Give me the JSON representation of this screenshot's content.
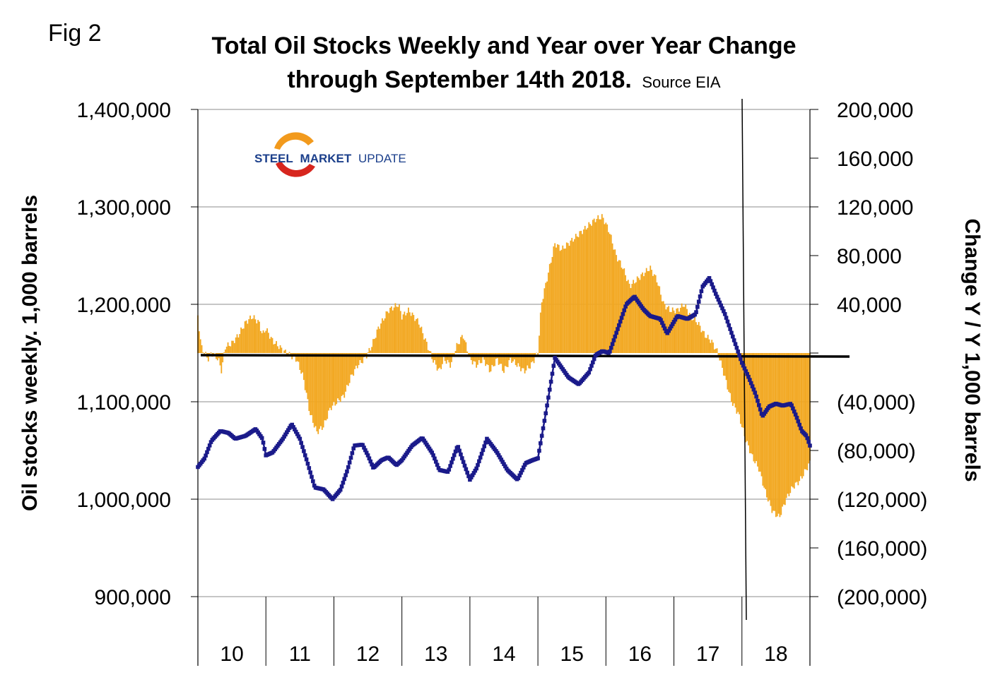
{
  "figure": {
    "label": "Fig 2",
    "title_line1": "Total Oil Stocks Weekly and Year over Year Change",
    "title_line2": "through September 14th 2018.",
    "source": "Source EIA"
  },
  "logo": {
    "word1": "STEEL",
    "word2": "MARKET",
    "word3": "UPDATE",
    "colors": {
      "dark": "#1b3f8b",
      "orange": "#f29a1d",
      "red": "#d7261e"
    }
  },
  "chart_data": {
    "type": "line+bar",
    "x_categories": [
      "10",
      "11",
      "12",
      "13",
      "14",
      "15",
      "16",
      "17",
      "18"
    ],
    "x_range": [
      2010.0,
      2019.0
    ],
    "y_left": {
      "label": "Oil stocks weekly. 1,000 barrels",
      "range": [
        900000,
        1400000
      ],
      "ticks": [
        900000,
        1000000,
        1100000,
        1200000,
        1300000,
        1400000
      ],
      "tick_labels": [
        "900,000",
        "1,000,000",
        "1,100,000",
        "1,200,000",
        "1,300,000",
        "1,400,000"
      ]
    },
    "y_right": {
      "label": "Change Y / Y 1,000 barrels",
      "range": [
        -200000,
        200000
      ],
      "ticks": [
        -200000,
        -160000,
        -120000,
        -80000,
        -40000,
        0,
        40000,
        80000,
        120000,
        160000,
        200000
      ],
      "tick_labels": [
        "(200,000)",
        "(160,000)",
        "(120,000)",
        "(80,000)",
        "(40,000)",
        "",
        "40,000",
        "80,000",
        "120,000",
        "160,000",
        "200,000"
      ]
    },
    "series": [
      {
        "name": "Total oil stocks weekly",
        "axis": "left",
        "style": "line-markers",
        "color": "#1a1a8a",
        "points": [
          [
            2010.0,
            1033000
          ],
          [
            2010.1,
            1042000
          ],
          [
            2010.2,
            1060000
          ],
          [
            2010.33,
            1070000
          ],
          [
            2010.45,
            1068000
          ],
          [
            2010.55,
            1062000
          ],
          [
            2010.7,
            1065000
          ],
          [
            2010.85,
            1072000
          ],
          [
            2010.95,
            1062000
          ],
          [
            2011.0,
            1045000
          ],
          [
            2011.1,
            1048000
          ],
          [
            2011.25,
            1062000
          ],
          [
            2011.38,
            1077000
          ],
          [
            2011.5,
            1062000
          ],
          [
            2011.6,
            1040000
          ],
          [
            2011.72,
            1012000
          ],
          [
            2011.85,
            1010000
          ],
          [
            2011.98,
            1000000
          ],
          [
            2012.1,
            1010000
          ],
          [
            2012.2,
            1030000
          ],
          [
            2012.3,
            1055000
          ],
          [
            2012.42,
            1056000
          ],
          [
            2012.5,
            1045000
          ],
          [
            2012.58,
            1032000
          ],
          [
            2012.7,
            1040000
          ],
          [
            2012.8,
            1043000
          ],
          [
            2012.92,
            1035000
          ],
          [
            2013.0,
            1040000
          ],
          [
            2013.15,
            1055000
          ],
          [
            2013.3,
            1063000
          ],
          [
            2013.45,
            1047000
          ],
          [
            2013.55,
            1030000
          ],
          [
            2013.68,
            1028000
          ],
          [
            2013.82,
            1055000
          ],
          [
            2013.92,
            1035000
          ],
          [
            2014.0,
            1020000
          ],
          [
            2014.1,
            1032000
          ],
          [
            2014.25,
            1062000
          ],
          [
            2014.4,
            1048000
          ],
          [
            2014.55,
            1030000
          ],
          [
            2014.7,
            1020000
          ],
          [
            2014.82,
            1037000
          ],
          [
            2014.92,
            1040000
          ],
          [
            2015.0,
            1042000
          ],
          [
            2015.12,
            1090000
          ],
          [
            2015.25,
            1145000
          ],
          [
            2015.35,
            1135000
          ],
          [
            2015.45,
            1125000
          ],
          [
            2015.6,
            1118000
          ],
          [
            2015.75,
            1130000
          ],
          [
            2015.85,
            1148000
          ],
          [
            2015.95,
            1152000
          ],
          [
            2016.05,
            1150000
          ],
          [
            2016.15,
            1170000
          ],
          [
            2016.3,
            1200000
          ],
          [
            2016.42,
            1208000
          ],
          [
            2016.55,
            1195000
          ],
          [
            2016.65,
            1188000
          ],
          [
            2016.8,
            1185000
          ],
          [
            2016.9,
            1170000
          ],
          [
            2017.05,
            1188000
          ],
          [
            2017.2,
            1185000
          ],
          [
            2017.32,
            1190000
          ],
          [
            2017.42,
            1218000
          ],
          [
            2017.52,
            1227000
          ],
          [
            2017.62,
            1210000
          ],
          [
            2017.75,
            1190000
          ],
          [
            2017.85,
            1170000
          ],
          [
            2017.95,
            1150000
          ],
          [
            2018.0,
            1140000
          ],
          [
            2018.1,
            1125000
          ],
          [
            2018.2,
            1108000
          ],
          [
            2018.3,
            1085000
          ],
          [
            2018.4,
            1095000
          ],
          [
            2018.5,
            1098000
          ],
          [
            2018.6,
            1096000
          ],
          [
            2018.72,
            1098000
          ],
          [
            2018.8,
            1085000
          ],
          [
            2018.88,
            1070000
          ],
          [
            2018.95,
            1065000
          ],
          [
            2019.0,
            1055000
          ]
        ]
      },
      {
        "name": "Change Y / Y",
        "axis": "right",
        "style": "bars",
        "color": "#f2a71f",
        "points": [
          [
            2010.0,
            30000
          ],
          [
            2010.05,
            5000
          ],
          [
            2010.15,
            -5000
          ],
          [
            2010.2,
            0
          ],
          [
            2010.3,
            -5000
          ],
          [
            2010.35,
            -15000
          ],
          [
            2010.4,
            5000
          ],
          [
            2010.5,
            8000
          ],
          [
            2010.6,
            15000
          ],
          [
            2010.7,
            25000
          ],
          [
            2010.8,
            30000
          ],
          [
            2010.9,
            25000
          ],
          [
            2010.95,
            15000
          ],
          [
            2011.0,
            20000
          ],
          [
            2011.1,
            10000
          ],
          [
            2011.2,
            5000
          ],
          [
            2011.3,
            0
          ],
          [
            2011.45,
            -5000
          ],
          [
            2011.55,
            -20000
          ],
          [
            2011.65,
            -50000
          ],
          [
            2011.75,
            -65000
          ],
          [
            2011.85,
            -60000
          ],
          [
            2011.95,
            -45000
          ],
          [
            2012.05,
            -40000
          ],
          [
            2012.15,
            -35000
          ],
          [
            2012.25,
            -20000
          ],
          [
            2012.35,
            -10000
          ],
          [
            2012.45,
            -5000
          ],
          [
            2012.55,
            5000
          ],
          [
            2012.65,
            20000
          ],
          [
            2012.8,
            35000
          ],
          [
            2012.95,
            40000
          ],
          [
            2013.0,
            30000
          ],
          [
            2013.1,
            35000
          ],
          [
            2013.25,
            25000
          ],
          [
            2013.35,
            10000
          ],
          [
            2013.45,
            -5000
          ],
          [
            2013.55,
            -15000
          ],
          [
            2013.62,
            -5000
          ],
          [
            2013.72,
            -10000
          ],
          [
            2013.8,
            5000
          ],
          [
            2013.9,
            15000
          ],
          [
            2014.0,
            -5000
          ],
          [
            2014.1,
            -10000
          ],
          [
            2014.2,
            -5000
          ],
          [
            2014.3,
            -15000
          ],
          [
            2014.4,
            -5000
          ],
          [
            2014.5,
            -15000
          ],
          [
            2014.6,
            -5000
          ],
          [
            2014.7,
            -10000
          ],
          [
            2014.8,
            -15000
          ],
          [
            2014.9,
            -10000
          ],
          [
            2015.0,
            0
          ],
          [
            2015.05,
            40000
          ],
          [
            2015.15,
            65000
          ],
          [
            2015.25,
            90000
          ],
          [
            2015.35,
            85000
          ],
          [
            2015.45,
            90000
          ],
          [
            2015.55,
            95000
          ],
          [
            2015.65,
            100000
          ],
          [
            2015.75,
            105000
          ],
          [
            2015.85,
            110000
          ],
          [
            2015.95,
            112000
          ],
          [
            2016.05,
            100000
          ],
          [
            2016.15,
            80000
          ],
          [
            2016.25,
            70000
          ],
          [
            2016.35,
            55000
          ],
          [
            2016.45,
            60000
          ],
          [
            2016.55,
            65000
          ],
          [
            2016.65,
            70000
          ],
          [
            2016.75,
            60000
          ],
          [
            2016.85,
            40000
          ],
          [
            2016.95,
            35000
          ],
          [
            2017.05,
            35000
          ],
          [
            2017.15,
            40000
          ],
          [
            2017.25,
            30000
          ],
          [
            2017.35,
            25000
          ],
          [
            2017.45,
            15000
          ],
          [
            2017.55,
            10000
          ],
          [
            2017.65,
            0
          ],
          [
            2017.75,
            -20000
          ],
          [
            2017.85,
            -40000
          ],
          [
            2017.95,
            -50000
          ],
          [
            2018.05,
            -70000
          ],
          [
            2018.15,
            -85000
          ],
          [
            2018.25,
            -95000
          ],
          [
            2018.35,
            -115000
          ],
          [
            2018.45,
            -130000
          ],
          [
            2018.55,
            -135000
          ],
          [
            2018.65,
            -120000
          ],
          [
            2018.75,
            -110000
          ],
          [
            2018.85,
            -105000
          ],
          [
            2018.95,
            -95000
          ],
          [
            2019.0,
            -90000
          ]
        ]
      }
    ],
    "grid": true,
    "legend": "none"
  }
}
